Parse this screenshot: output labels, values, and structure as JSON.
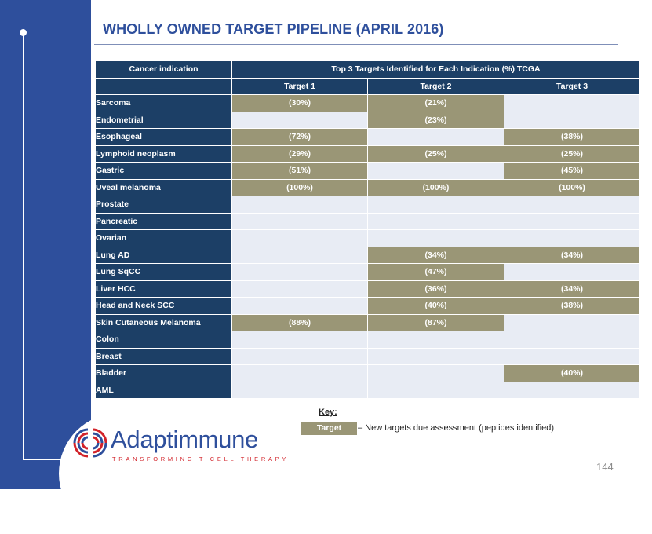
{
  "slide": {
    "title": "WHOLLY OWNED TARGET PIPELINE (APRIL 2016)",
    "page_number": "144"
  },
  "table": {
    "indication_header": "Cancer indication",
    "group_header": "Top 3 Targets Identified for Each Indication (%) TCGA",
    "target_headers": [
      "Target 1",
      "Target 2",
      "Target 3"
    ],
    "rows": [
      {
        "indication": "Sarcoma",
        "cells": [
          "(30%)",
          "(21%)",
          ""
        ]
      },
      {
        "indication": "Endometrial",
        "cells": [
          "",
          "(23%)",
          ""
        ]
      },
      {
        "indication": "Esophageal",
        "cells": [
          "(72%)",
          "",
          "(38%)"
        ]
      },
      {
        "indication": "Lymphoid neoplasm",
        "cells": [
          "(29%)",
          "(25%)",
          "(25%)"
        ]
      },
      {
        "indication": "Gastric",
        "cells": [
          "(51%)",
          "",
          "(45%)"
        ]
      },
      {
        "indication": "Uveal melanoma",
        "cells": [
          "(100%)",
          "(100%)",
          "(100%)"
        ]
      },
      {
        "indication": "Prostate",
        "cells": [
          "",
          "",
          ""
        ]
      },
      {
        "indication": "Pancreatic",
        "cells": [
          "",
          "",
          ""
        ]
      },
      {
        "indication": "Ovarian",
        "cells": [
          "",
          "",
          ""
        ]
      },
      {
        "indication": "Lung AD",
        "cells": [
          "",
          "(34%)",
          "(34%)"
        ]
      },
      {
        "indication": "Lung SqCC",
        "cells": [
          "",
          "(47%)",
          ""
        ]
      },
      {
        "indication": "Liver HCC",
        "cells": [
          "",
          "(36%)",
          "(34%)"
        ]
      },
      {
        "indication": "Head and Neck SCC",
        "cells": [
          "",
          "(40%)",
          "(38%)"
        ]
      },
      {
        "indication": "Skin Cutaneous Melanoma",
        "cells": [
          "(88%)",
          "(87%)",
          ""
        ]
      },
      {
        "indication": "Colon",
        "cells": [
          "",
          "",
          ""
        ]
      },
      {
        "indication": "Breast",
        "cells": [
          "",
          "",
          ""
        ]
      },
      {
        "indication": "Bladder",
        "cells": [
          "",
          "",
          "(40%)"
        ]
      },
      {
        "indication": "AML",
        "cells": [
          "",
          "",
          ""
        ]
      }
    ]
  },
  "key": {
    "label": "Key:",
    "box_text": "Target",
    "description": "– New targets due assessment (peptides identified)"
  },
  "logo": {
    "name": "Adaptimmune",
    "tagline": "TRANSFORMING T CELL THERAPY",
    "icon": "adaptimmune-logo-mark"
  },
  "colors": {
    "brand_blue": "#2e4f9c",
    "table_header": "#1c3f66",
    "target_fill": "#9a9676",
    "empty_fill": "#e8ecf4",
    "brand_red": "#d2232a"
  }
}
